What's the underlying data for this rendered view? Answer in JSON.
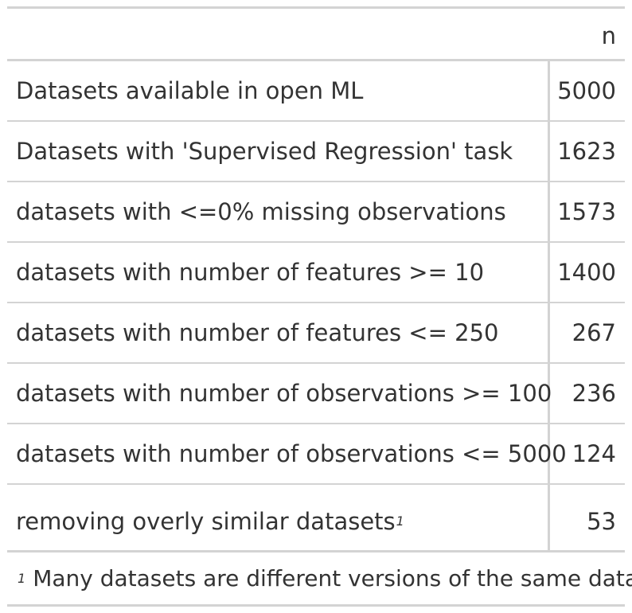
{
  "table": {
    "column_header": "n",
    "rows": [
      {
        "label": "Datasets available in open ML",
        "value": "5000"
      },
      {
        "label": "Datasets with 'Supervised Regression' task",
        "value": "1623"
      },
      {
        "label": "datasets with <=0% missing observations",
        "value": "1573"
      },
      {
        "label": "datasets with number of features >= 10",
        "value": "1400"
      },
      {
        "label": "datasets with number of features <= 250",
        "value": "267"
      },
      {
        "label": "datasets with number of observations >= 100",
        "value": "236"
      },
      {
        "label": "datasets with number of observations <= 5000",
        "value": "124"
      },
      {
        "label": "removing overly similar datasets",
        "value": "53",
        "footnote_marker": "1"
      }
    ],
    "footnote": {
      "marker": "1",
      "text": "Many datasets are different versions of the same data"
    }
  },
  "colors": {
    "text": "#333333",
    "rule": "#d3d3d3",
    "background": "#ffffff"
  }
}
